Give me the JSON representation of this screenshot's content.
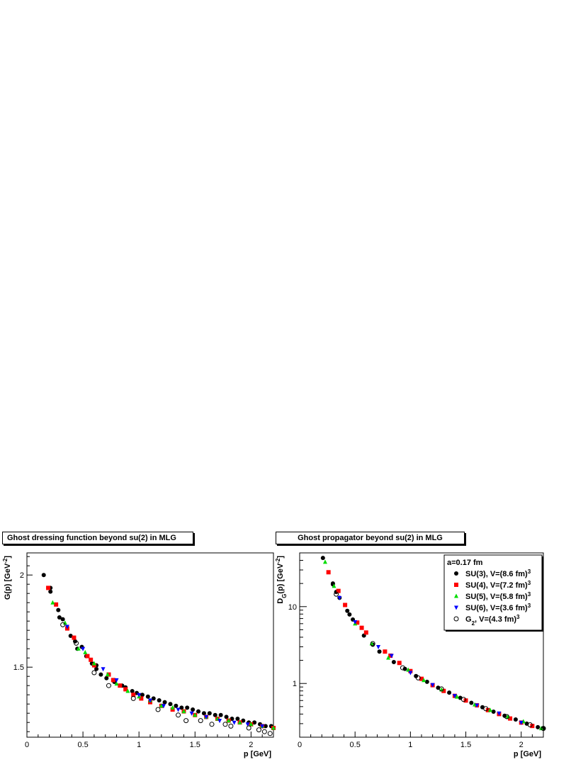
{
  "chart_data": [
    {
      "type": "scatter",
      "title": "Ghost dressing function beyond su(2) in MLG",
      "xlabel": "p [GeV]",
      "ylabel": "G(p) [GeV^-2]",
      "xlim": [
        0,
        2.2
      ],
      "ylim": [
        1.12,
        2.12
      ],
      "yscale": "linear",
      "x_ticks": [
        "0",
        "0.5",
        "1",
        "1.5",
        "2"
      ],
      "y_ticks": [
        "1.5",
        "2"
      ],
      "grid": false,
      "series": [
        {
          "name": "SU(3), V=(8.6 fm)^3",
          "marker": "circle-filled",
          "color": "#000000",
          "x": [
            0.15,
            0.21,
            0.21,
            0.28,
            0.29,
            0.32,
            0.39,
            0.43,
            0.45,
            0.49,
            0.53,
            0.58,
            0.62,
            0.62,
            0.66,
            0.71,
            0.78,
            0.85,
            0.88,
            0.94,
            0.98,
            1.03,
            1.08,
            1.13,
            1.18,
            1.23,
            1.28,
            1.33,
            1.38,
            1.43,
            1.48,
            1.53,
            1.58,
            1.63,
            1.68,
            1.73,
            1.78,
            1.83,
            1.88,
            1.93,
            1.98,
            2.03,
            2.08,
            2.13,
            2.18
          ],
          "y": [
            2.0,
            1.93,
            1.91,
            1.81,
            1.77,
            1.76,
            1.67,
            1.64,
            1.6,
            1.61,
            1.56,
            1.52,
            1.51,
            1.49,
            1.46,
            1.44,
            1.42,
            1.4,
            1.39,
            1.37,
            1.36,
            1.35,
            1.34,
            1.33,
            1.32,
            1.31,
            1.3,
            1.29,
            1.28,
            1.28,
            1.27,
            1.26,
            1.25,
            1.25,
            1.24,
            1.24,
            1.23,
            1.22,
            1.22,
            1.21,
            1.2,
            1.2,
            1.19,
            1.18,
            1.18
          ]
        },
        {
          "name": "SU(4), V=(7.2 fm)^3",
          "marker": "square",
          "color": "#ff0000",
          "x": [
            0.19,
            0.26,
            0.36,
            0.42,
            0.54,
            0.57,
            0.6,
            0.73,
            0.77,
            0.83,
            0.88,
            0.95,
            1.02,
            1.1,
            1.2,
            1.3,
            1.4,
            1.5,
            1.6,
            1.7,
            1.8,
            1.9,
            2.0,
            2.1,
            2.2
          ],
          "y": [
            1.93,
            1.84,
            1.71,
            1.66,
            1.56,
            1.54,
            1.51,
            1.46,
            1.43,
            1.4,
            1.38,
            1.35,
            1.33,
            1.31,
            1.29,
            1.27,
            1.26,
            1.24,
            1.23,
            1.22,
            1.21,
            1.2,
            1.19,
            1.18,
            1.17
          ]
        },
        {
          "name": "SU(5), V=(5.8 fm)^3",
          "marker": "triangle-up",
          "color": "#00dd00",
          "x": [
            0.23,
            0.34,
            0.46,
            0.52,
            0.6,
            0.72,
            0.8,
            0.9,
            1.0,
            1.1,
            1.2,
            1.3,
            1.4,
            1.5,
            1.6,
            1.7,
            1.8,
            1.9,
            2.0,
            2.1,
            2.2
          ],
          "y": [
            1.85,
            1.74,
            1.6,
            1.58,
            1.52,
            1.46,
            1.41,
            1.37,
            1.34,
            1.32,
            1.29,
            1.28,
            1.26,
            1.24,
            1.23,
            1.22,
            1.21,
            1.2,
            1.19,
            1.18,
            1.17
          ]
        },
        {
          "name": "SU(6), V=(3.6 fm)^3",
          "marker": "triangle-down",
          "color": "#0000ff",
          "x": [
            0.36,
            0.5,
            0.68,
            0.8,
            1.0,
            1.1,
            1.22,
            1.35,
            1.47,
            1.6,
            1.72,
            1.85,
            1.97,
            2.1
          ],
          "y": [
            1.72,
            1.6,
            1.49,
            1.43,
            1.35,
            1.32,
            1.29,
            1.27,
            1.25,
            1.23,
            1.21,
            1.2,
            1.19,
            1.18
          ]
        },
        {
          "name": "G_2, V=(4.3 fm)^3",
          "marker": "circle-open",
          "color": "#000000",
          "x": [
            0.32,
            0.44,
            0.6,
            0.73,
            0.95,
            1.17,
            1.35,
            1.42,
            1.55,
            1.65,
            1.77,
            1.82,
            1.98,
            2.07,
            2.12,
            2.17
          ],
          "y": [
            1.73,
            1.63,
            1.47,
            1.4,
            1.33,
            1.27,
            1.24,
            1.21,
            1.21,
            1.19,
            1.19,
            1.18,
            1.17,
            1.16,
            1.15,
            1.14
          ]
        }
      ]
    },
    {
      "type": "scatter",
      "title": "Ghost propagator beyond su(2) in MLG",
      "xlabel": "p [GeV]",
      "ylabel": "D_G(p) [GeV^-2]",
      "xlim": [
        0,
        2.2
      ],
      "ylim": [
        0.2,
        50
      ],
      "yscale": "log",
      "x_ticks": [
        "0",
        "0.5",
        "1",
        "1.5",
        "2"
      ],
      "y_ticks": [
        "1",
        "10"
      ],
      "grid": false,
      "legend_position": "top-right",
      "legend_header": "a=0.17 fm",
      "series": [
        {
          "name": "SU(3), V=(8.6 fm)^3",
          "marker": "circle-filled",
          "color": "#000000",
          "x": [
            0.21,
            0.3,
            0.3,
            0.33,
            0.36,
            0.43,
            0.45,
            0.48,
            0.58,
            0.66,
            0.72,
            0.85,
            0.95,
            1.05,
            1.15,
            1.25,
            1.35,
            1.45,
            1.55,
            1.65,
            1.75,
            1.85,
            1.95,
            2.05,
            2.15,
            2.2
          ],
          "y": [
            43,
            20,
            19.5,
            15.5,
            13,
            8.8,
            7.9,
            6.8,
            4.2,
            3.2,
            2.6,
            1.9,
            1.55,
            1.25,
            1.05,
            0.88,
            0.76,
            0.65,
            0.56,
            0.49,
            0.43,
            0.38,
            0.34,
            0.3,
            0.27,
            0.26
          ]
        },
        {
          "name": "SU(4), V=(7.2 fm)^3",
          "marker": "square",
          "color": "#ff0000",
          "x": [
            0.26,
            0.35,
            0.41,
            0.52,
            0.56,
            0.6,
            0.77,
            0.82,
            0.9,
            1.0,
            1.1,
            1.2,
            1.3,
            1.4,
            1.5,
            1.6,
            1.7,
            1.8,
            1.9,
            2.0,
            2.1
          ],
          "y": [
            28,
            16,
            10.5,
            6.2,
            5.3,
            4.6,
            2.6,
            2.3,
            1.85,
            1.45,
            1.15,
            0.95,
            0.8,
            0.69,
            0.6,
            0.52,
            0.45,
            0.4,
            0.35,
            0.31,
            0.28
          ]
        },
        {
          "name": "SU(5), V=(5.8 fm)^3",
          "marker": "triangle-up",
          "color": "#00dd00",
          "x": [
            0.23,
            0.31,
            0.5,
            0.65,
            0.8,
            0.98,
            1.12,
            1.28,
            1.42,
            1.58,
            1.72,
            1.88,
            2.02,
            2.18
          ],
          "y": [
            38,
            18.5,
            6.0,
            3.3,
            2.15,
            1.5,
            1.1,
            0.83,
            0.67,
            0.53,
            0.45,
            0.37,
            0.32,
            0.26
          ]
        },
        {
          "name": "SU(6), V=(3.6 fm)^3",
          "marker": "triangle-down",
          "color": "#0000ff",
          "x": [
            0.36,
            0.5,
            0.71,
            0.83,
            1.0,
            1.2,
            1.4,
            1.6,
            1.8,
            2.0
          ],
          "y": [
            13,
            6.3,
            3.0,
            2.3,
            1.38,
            0.96,
            0.69,
            0.52,
            0.41,
            0.31
          ]
        },
        {
          "name": "G_2, V=(4.3 fm)^3",
          "marker": "circle-open",
          "color": "#000000",
          "x": [
            0.33,
            0.66,
            0.93,
            1.07,
            1.28,
            1.48,
            1.68,
            1.87,
            2.08,
            2.2
          ],
          "y": [
            14.5,
            3.3,
            1.6,
            1.18,
            0.85,
            0.62,
            0.47,
            0.37,
            0.29,
            0.26
          ]
        }
      ]
    }
  ]
}
